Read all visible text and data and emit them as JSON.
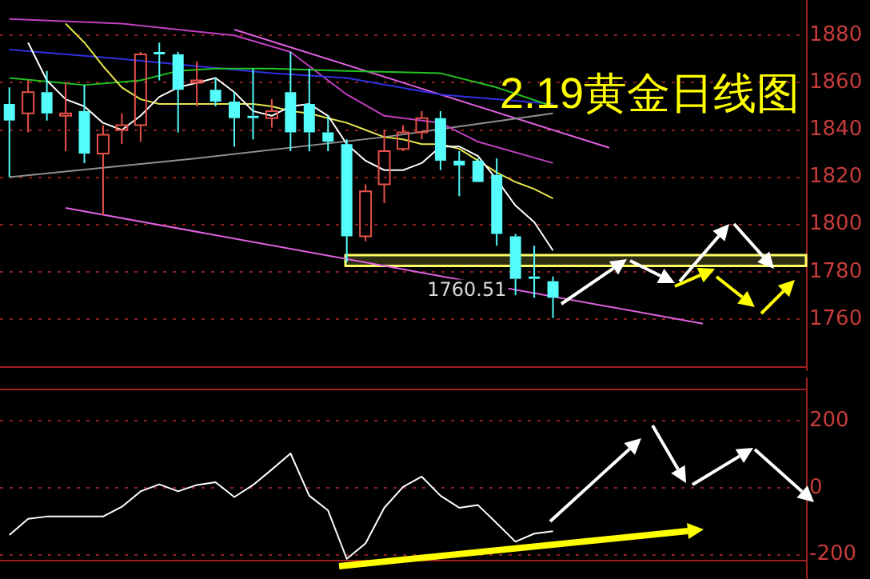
{
  "chart_data": [
    {
      "type": "candlestick",
      "title": "2.19黄金日线图",
      "categories": [
        null,
        null,
        null,
        null,
        null,
        null,
        null,
        null,
        null,
        null,
        null,
        null,
        null,
        null,
        null,
        null,
        null,
        null,
        null,
        null,
        null,
        null,
        null,
        null,
        null,
        null,
        null,
        null,
        null,
        null,
        null,
        null,
        null,
        null,
        null,
        null,
        null,
        null,
        null,
        null,
        null,
        null,
        null
      ],
      "ohlc": [
        [
          1851,
          1858,
          1820,
          1844
        ],
        [
          1847,
          1861,
          1839,
          1856
        ],
        [
          1856,
          1865,
          1844,
          1847
        ],
        [
          1846,
          1860,
          1831,
          1847
        ],
        [
          1848,
          1859,
          1826,
          1830
        ],
        [
          1830,
          1842,
          1804,
          1838
        ],
        [
          1840,
          1847,
          1834,
          1842
        ],
        [
          1842,
          1873,
          1835,
          1872
        ],
        [
          1873,
          1877,
          1861,
          1872
        ],
        [
          1872,
          1873,
          1839,
          1857
        ],
        [
          1860,
          1869,
          1850,
          1861
        ],
        [
          1857,
          1862,
          1850,
          1852
        ],
        [
          1852,
          1856,
          1833,
          1845
        ],
        [
          1846,
          1866,
          1836,
          1845
        ],
        [
          1845,
          1853,
          1841,
          1848
        ],
        [
          1856,
          1873,
          1831,
          1839
        ],
        [
          1851,
          1866,
          1831,
          1839
        ],
        [
          1839,
          1846,
          1831,
          1835
        ],
        [
          1834,
          1836,
          1784,
          1795
        ],
        [
          1795,
          1817,
          1793,
          1814
        ],
        [
          1817,
          1840,
          1809,
          1831
        ],
        [
          1832,
          1842,
          1831,
          1839
        ],
        [
          1839,
          1848,
          1836,
          1845
        ],
        [
          1845,
          1848,
          1823,
          1827
        ],
        [
          1827,
          1831,
          1812,
          1825
        ],
        [
          1827,
          1828,
          1818,
          1818
        ],
        [
          1821,
          1828,
          1791,
          1796
        ],
        [
          1795,
          1796,
          1770,
          1777
        ],
        [
          1778,
          1791,
          1769,
          1777
        ],
        [
          1776,
          1778,
          1760.51,
          1769
        ],
        null,
        null,
        null,
        null,
        null,
        null,
        null,
        null,
        null,
        null,
        null,
        null,
        null
      ],
      "colors": [
        "#54fcfc",
        "#e8504a",
        "#54fcfc",
        "#e8504a",
        "#54fcfc",
        "#e8504a",
        "#e8504a",
        "#e8504a",
        "#54fcfc",
        "#54fcfc",
        "#e8504a",
        "#54fcfc",
        "#54fcfc",
        "#54fcfc",
        "#e8504a",
        "#54fcfc",
        "#54fcfc",
        "#54fcfc",
        "#54fcfc",
        "#e8504a",
        "#e8504a",
        "#e8504a",
        "#e8504a",
        "#54fcfc",
        "#54fcfc",
        "#54fcfc",
        "#54fcfc",
        "#54fcfc",
        "#54fcfc",
        "#54fcfc",
        null,
        null,
        null,
        null,
        null,
        null,
        null,
        null,
        null,
        null,
        null,
        null,
        null
      ],
      "series": [
        {
          "type": "line",
          "color": "#ffffff",
          "values": [
            null,
            1877,
            1861,
            1853,
            1850,
            1843,
            1840,
            1846,
            1854,
            1858,
            1860,
            1862,
            1856,
            1848,
            1846,
            1850,
            1851,
            1846,
            1834,
            1827,
            1823,
            1823,
            1826,
            1833,
            1833,
            1829,
            1819,
            1808,
            1801,
            1789,
            null,
            null,
            null,
            null,
            null,
            null,
            null,
            null,
            null,
            null,
            null,
            null,
            null
          ]
        },
        {
          "type": "line",
          "color": "#e6e64c",
          "values": [
            null,
            null,
            null,
            1885,
            1877,
            1867,
            1858,
            1853,
            1851,
            1851,
            1851,
            1851,
            1851,
            1851,
            1850,
            1848,
            1847,
            1845,
            1843,
            1840,
            1837,
            1836,
            1834,
            1834,
            1832,
            1827,
            1822,
            1818,
            1815,
            1811,
            null,
            null,
            null,
            null,
            null,
            null,
            null,
            null,
            null,
            null,
            null,
            null,
            null
          ]
        },
        {
          "type": "line",
          "color": "#22c422",
          "values": [
            1862,
            null,
            null,
            null,
            1859,
            null,
            null,
            1861,
            null,
            1865,
            null,
            1866,
            null,
            null,
            1866,
            null,
            null,
            null,
            1865,
            null,
            null,
            null,
            null,
            1864,
            null,
            null,
            1858,
            null,
            null,
            1850,
            null,
            null,
            null,
            null,
            null,
            null,
            null,
            null,
            null,
            null,
            null,
            null,
            null
          ]
        },
        {
          "type": "line",
          "color": "#3030e0",
          "values": [
            1874,
            null,
            null,
            null,
            null,
            null,
            1870,
            null,
            null,
            null,
            1867,
            null,
            null,
            null,
            1864,
            null,
            null,
            null,
            1862,
            null,
            null,
            null,
            null,
            1855,
            null,
            null,
            null,
            null,
            null,
            1851,
            null,
            null,
            null,
            null,
            null,
            null,
            null,
            null,
            null,
            null,
            null,
            null,
            null
          ]
        },
        {
          "type": "line",
          "color": "#c040c0",
          "values": [
            1887,
            null,
            null,
            null,
            null,
            null,
            1885,
            null,
            null,
            null,
            null,
            null,
            1880,
            null,
            null,
            1873,
            null,
            null,
            1855,
            null,
            1846,
            null,
            null,
            1843,
            null,
            1835,
            null,
            null,
            null,
            1826,
            null,
            null,
            null,
            null,
            null,
            null,
            null,
            null,
            null,
            null,
            null,
            null,
            null
          ]
        },
        {
          "type": "line",
          "color": "#909090",
          "values": [
            1820,
            null,
            null,
            null,
            null,
            null,
            null,
            null,
            null,
            null,
            1828,
            null,
            null,
            null,
            null,
            null,
            null,
            null,
            null,
            null,
            1837,
            null,
            null,
            null,
            null,
            null,
            null,
            null,
            null,
            1847,
            null,
            null,
            null,
            null,
            null,
            null,
            null,
            null,
            null,
            null,
            null,
            null,
            null
          ]
        },
        {
          "type": "line",
          "color": "#e060e0",
          "values": [
            null,
            null,
            null,
            null,
            null,
            null,
            null,
            null,
            null,
            null,
            null,
            null,
            1882.5,
            null,
            null,
            null,
            null,
            null,
            null,
            null,
            null,
            null,
            null,
            null,
            null,
            null,
            null,
            null,
            null,
            null,
            null,
            null,
            1832.5,
            null,
            null,
            null,
            null,
            null,
            null,
            null,
            null,
            null,
            null
          ]
        },
        {
          "type": "line",
          "color": "#e060e0",
          "values": [
            null,
            null,
            null,
            1807,
            null,
            null,
            null,
            null,
            null,
            null,
            null,
            null,
            null,
            null,
            null,
            null,
            null,
            null,
            null,
            null,
            null,
            null,
            null,
            null,
            null,
            null,
            null,
            null,
            null,
            null,
            null,
            null,
            null,
            null,
            null,
            null,
            null,
            1758,
            null,
            null,
            null,
            null,
            null
          ]
        }
      ],
      "bands": [
        {
          "axis": "y",
          "from": 1782.5,
          "to": 1787,
          "color": "#ffff66"
        }
      ],
      "annotations": [
        "1760.51"
      ],
      "ylim": [
        1740,
        1895
      ],
      "yticks": [
        1760,
        1780,
        1800,
        1820,
        1840,
        1860,
        1880
      ],
      "grid": "y",
      "tick_labels": "y",
      "marker": "none"
    },
    {
      "type": "line",
      "categories": [
        null,
        null,
        null,
        null,
        null,
        null,
        null,
        null,
        null,
        null,
        null,
        null,
        null,
        null,
        null,
        null,
        null,
        null,
        null,
        null,
        null,
        null,
        null,
        null,
        null,
        null,
        null,
        null,
        null,
        null,
        null,
        null,
        null,
        null,
        null,
        null,
        null,
        null,
        null,
        null,
        null,
        null,
        null
      ],
      "series": [
        {
          "color": "#ffffff",
          "values": [
            -141,
            -93,
            -86,
            -86,
            -86,
            -86,
            -57,
            -11,
            10,
            -11,
            8,
            16,
            -28,
            8,
            54,
            102,
            -24,
            -68,
            -212,
            -166,
            -60,
            2,
            33,
            -24,
            -60,
            -52,
            -106,
            -161,
            -137,
            -130,
            null,
            null,
            null,
            null,
            null,
            null,
            null,
            null,
            null,
            null,
            null,
            null,
            null
          ]
        }
      ],
      "ylim": [
        -215,
        295
      ],
      "yticks": [
        -200,
        0,
        200
      ],
      "grid": "y",
      "tick_labels": "y",
      "marker": "none"
    }
  ]
}
